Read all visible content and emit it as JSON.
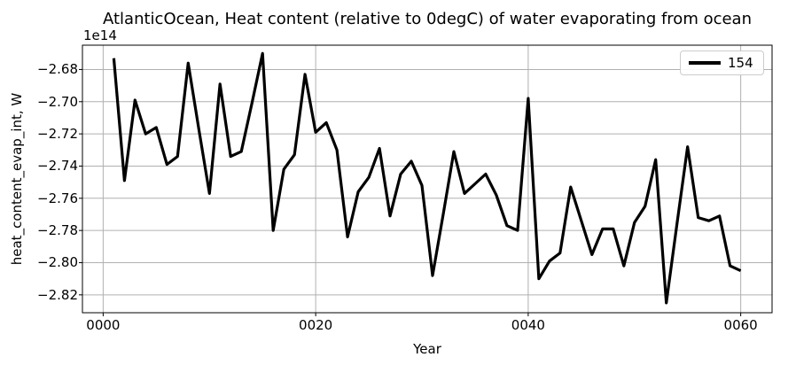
{
  "chart_data": {
    "type": "line",
    "title": "AtlanticOcean, Heat content (relative to 0degC) of water evaporating from ocean",
    "xlabel": "Year",
    "ylabel": "heat_content_evap_int, W",
    "y_offset_label": "1e14",
    "value_scale": "1e14",
    "grid": true,
    "grid_color": "#b0b0b0",
    "line_color": "#000000",
    "background_color": "#ffffff",
    "legend": {
      "position": "upper right",
      "entries": [
        "154"
      ]
    },
    "xlim": [
      -1.95,
      62.95
    ],
    "ylim": [
      -2.8311,
      -2.6649
    ],
    "xticks": {
      "values": [
        0,
        20,
        40,
        60
      ],
      "labels": [
        "0000",
        "0020",
        "0040",
        "0060"
      ]
    },
    "yticks": {
      "values": [
        -2.68,
        -2.7,
        -2.72,
        -2.74,
        -2.76,
        -2.78,
        -2.8,
        -2.82
      ],
      "labels": [
        "−2.68",
        "−2.70",
        "−2.72",
        "−2.74",
        "−2.76",
        "−2.78",
        "−2.80",
        "−2.82"
      ]
    },
    "series": [
      {
        "name": "154",
        "x": [
          1,
          2,
          3,
          4,
          5,
          6,
          7,
          8,
          9,
          10,
          11,
          12,
          13,
          14,
          15,
          16,
          17,
          18,
          19,
          20,
          21,
          22,
          23,
          24,
          25,
          26,
          27,
          28,
          29,
          30,
          31,
          32,
          33,
          34,
          35,
          36,
          37,
          38,
          39,
          40,
          41,
          42,
          43,
          44,
          45,
          46,
          47,
          48,
          49,
          50,
          51,
          52,
          53,
          54,
          55,
          56,
          57,
          58,
          59,
          60
        ],
        "values": [
          -2.673,
          -2.749,
          -2.699,
          -2.72,
          -2.716,
          -2.739,
          -2.734,
          -2.676,
          -2.717,
          -2.757,
          -2.689,
          -2.734,
          -2.731,
          -2.701,
          -2.67,
          -2.78,
          -2.742,
          -2.733,
          -2.683,
          -2.719,
          -2.713,
          -2.73,
          -2.784,
          -2.756,
          -2.747,
          -2.729,
          -2.771,
          -2.745,
          -2.737,
          -2.752,
          -2.808,
          -2.77,
          -2.731,
          -2.757,
          -2.751,
          -2.745,
          -2.758,
          -2.777,
          -2.78,
          -2.698,
          -2.81,
          -2.799,
          -2.794,
          -2.753,
          -2.774,
          -2.795,
          -2.779,
          -2.779,
          -2.802,
          -2.775,
          -2.765,
          -2.736,
          -2.825,
          -2.776,
          -2.728,
          -2.772,
          -2.774,
          -2.771,
          -2.802,
          -2.805
        ]
      }
    ]
  }
}
